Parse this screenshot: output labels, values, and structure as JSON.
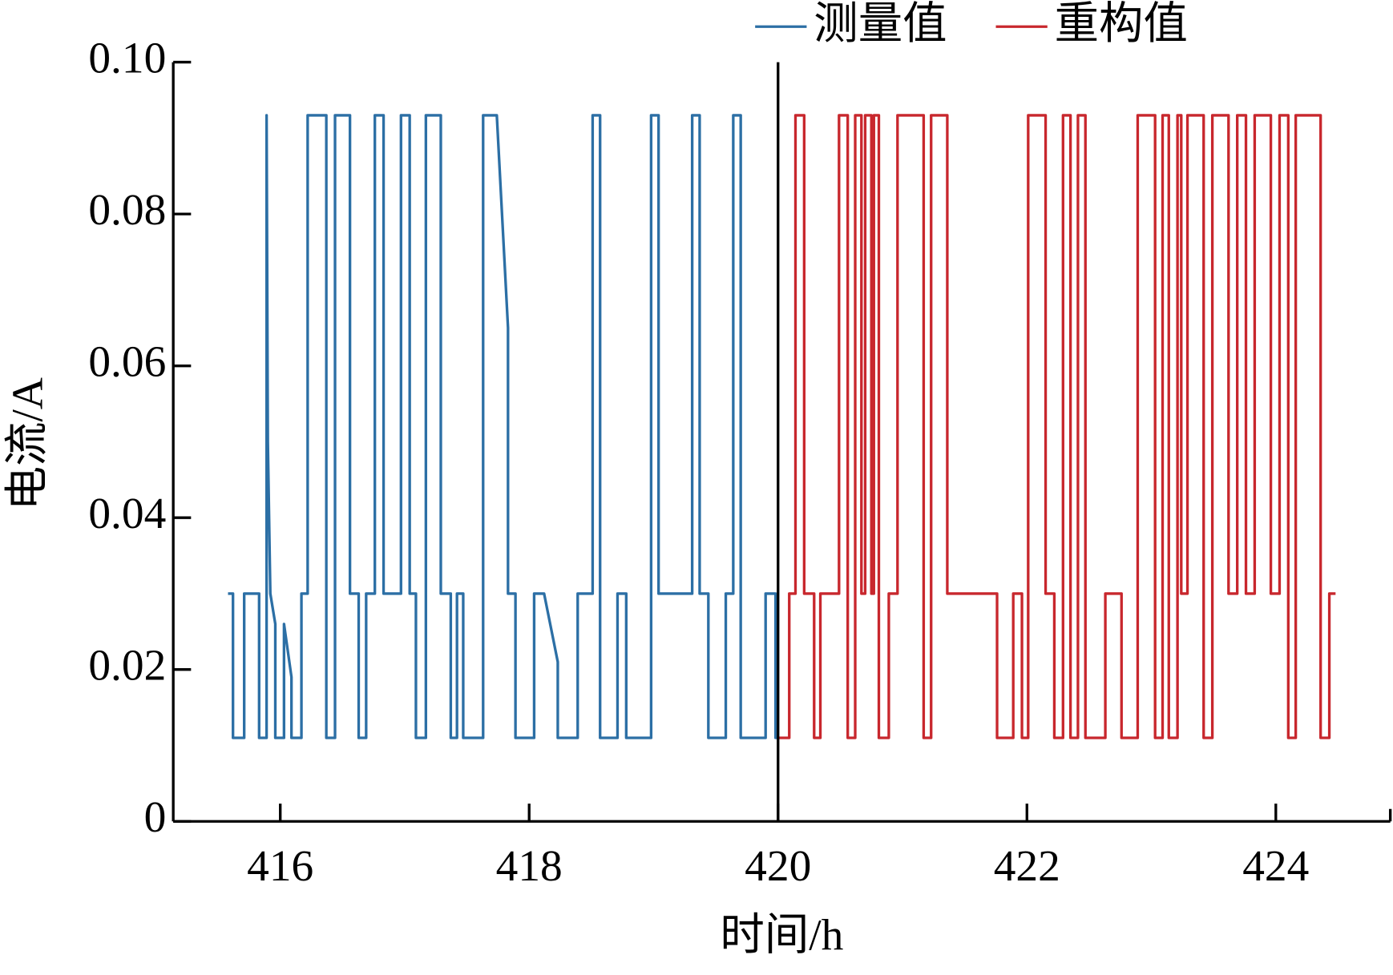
{
  "chart_data": {
    "type": "line",
    "xlabel": "时间/h",
    "ylabel": "电流/A",
    "xlim": [
      415.14,
      424.92
    ],
    "ylim": [
      0,
      0.1
    ],
    "xticks": [
      416,
      418,
      420,
      422,
      424
    ],
    "yticks": [
      0,
      0.02,
      0.04,
      0.06,
      0.08,
      {
        "value": 0.1,
        "label": "0.10"
      }
    ],
    "vline": 420,
    "legend": "upper right",
    "series": [
      {
        "name": "测量值",
        "color": "#2c6fa5",
        "x": [
          415.58,
          415.62,
          415.62,
          415.71,
          415.71,
          415.83,
          415.83,
          415.89,
          415.89,
          415.9,
          415.92,
          415.96,
          415.96,
          416.03,
          416.03,
          416.09,
          416.09,
          416.17,
          416.17,
          416.22,
          416.22,
          416.37,
          416.37,
          416.44,
          416.44,
          416.56,
          416.56,
          416.63,
          416.63,
          416.69,
          416.69,
          416.76,
          416.76,
          416.83,
          416.83,
          416.97,
          416.97,
          417.04,
          417.04,
          417.09,
          417.09,
          417.17,
          417.17,
          417.29,
          417.29,
          417.37,
          417.37,
          417.42,
          417.42,
          417.47,
          417.47,
          417.63,
          417.63,
          417.74,
          417.83,
          417.83,
          417.89,
          417.89,
          418.04,
          418.04,
          418.12,
          418.23,
          418.23,
          418.39,
          418.39,
          418.51,
          418.51,
          418.57,
          418.57,
          418.71,
          418.71,
          418.78,
          418.78,
          418.98,
          418.98,
          419.04,
          419.04,
          419.31,
          419.31,
          419.37,
          419.37,
          419.44,
          419.44,
          419.58,
          419.58,
          419.64,
          419.64,
          419.7,
          419.7,
          419.9,
          419.9,
          419.98,
          419.98,
          420.0
        ],
        "values": [
          0.03,
          0.03,
          0.011,
          0.011,
          0.03,
          0.03,
          0.011,
          0.011,
          0.093,
          0.05,
          0.03,
          0.026,
          0.011,
          0.011,
          0.026,
          0.019,
          0.011,
          0.011,
          0.03,
          0.03,
          0.093,
          0.093,
          0.011,
          0.011,
          0.093,
          0.093,
          0.03,
          0.03,
          0.011,
          0.011,
          0.03,
          0.03,
          0.093,
          0.093,
          0.03,
          0.03,
          0.093,
          0.093,
          0.03,
          0.03,
          0.011,
          0.011,
          0.093,
          0.093,
          0.03,
          0.03,
          0.011,
          0.011,
          0.03,
          0.03,
          0.011,
          0.011,
          0.093,
          0.093,
          0.065,
          0.03,
          0.03,
          0.011,
          0.011,
          0.03,
          0.03,
          0.021,
          0.011,
          0.011,
          0.03,
          0.03,
          0.093,
          0.093,
          0.011,
          0.011,
          0.03,
          0.03,
          0.011,
          0.011,
          0.093,
          0.093,
          0.03,
          0.03,
          0.093,
          0.093,
          0.03,
          0.03,
          0.011,
          0.011,
          0.03,
          0.03,
          0.093,
          0.093,
          0.011,
          0.011,
          0.03,
          0.03,
          0.011,
          0.011
        ]
      },
      {
        "name": "重构值",
        "color": "#c8272d",
        "x": [
          420.0,
          420.09,
          420.09,
          420.14,
          420.14,
          420.21,
          420.21,
          420.29,
          420.29,
          420.34,
          420.34,
          420.49,
          420.49,
          420.56,
          420.56,
          420.62,
          420.62,
          420.67,
          420.67,
          420.7,
          420.7,
          420.75,
          420.75,
          420.77,
          420.77,
          420.81,
          420.81,
          420.89,
          420.89,
          420.96,
          420.96,
          421.17,
          421.17,
          421.23,
          421.23,
          421.36,
          421.36,
          421.76,
          421.76,
          421.89,
          421.89,
          421.96,
          421.96,
          422.01,
          422.01,
          422.15,
          422.15,
          422.22,
          422.22,
          422.29,
          422.29,
          422.35,
          422.35,
          422.41,
          422.41,
          422.47,
          422.47,
          422.63,
          422.63,
          422.76,
          422.76,
          422.89,
          422.89,
          423.03,
          423.03,
          423.09,
          423.09,
          423.14,
          423.14,
          423.21,
          423.21,
          423.24,
          423.24,
          423.29,
          423.29,
          423.42,
          423.42,
          423.49,
          423.49,
          423.62,
          423.62,
          423.69,
          423.69,
          423.76,
          423.76,
          423.83,
          423.83,
          423.96,
          423.96,
          424.03,
          424.03,
          424.1,
          424.1,
          424.16,
          424.16,
          424.36,
          424.36,
          424.43,
          424.43,
          424.48
        ],
        "values": [
          0.011,
          0.011,
          0.03,
          0.03,
          0.093,
          0.093,
          0.03,
          0.03,
          0.011,
          0.011,
          0.03,
          0.03,
          0.093,
          0.093,
          0.011,
          0.011,
          0.093,
          0.093,
          0.03,
          0.03,
          0.093,
          0.093,
          0.03,
          0.03,
          0.093,
          0.093,
          0.011,
          0.011,
          0.03,
          0.03,
          0.093,
          0.093,
          0.011,
          0.011,
          0.093,
          0.093,
          0.03,
          0.03,
          0.011,
          0.011,
          0.03,
          0.03,
          0.011,
          0.011,
          0.093,
          0.093,
          0.03,
          0.03,
          0.011,
          0.011,
          0.093,
          0.093,
          0.011,
          0.011,
          0.093,
          0.093,
          0.011,
          0.011,
          0.03,
          0.03,
          0.011,
          0.011,
          0.093,
          0.093,
          0.011,
          0.011,
          0.093,
          0.093,
          0.011,
          0.011,
          0.093,
          0.093,
          0.03,
          0.03,
          0.093,
          0.093,
          0.011,
          0.011,
          0.093,
          0.093,
          0.03,
          0.03,
          0.093,
          0.093,
          0.03,
          0.03,
          0.093,
          0.093,
          0.03,
          0.03,
          0.093,
          0.093,
          0.011,
          0.011,
          0.093,
          0.093,
          0.011,
          0.011,
          0.03,
          0.03
        ]
      }
    ]
  }
}
